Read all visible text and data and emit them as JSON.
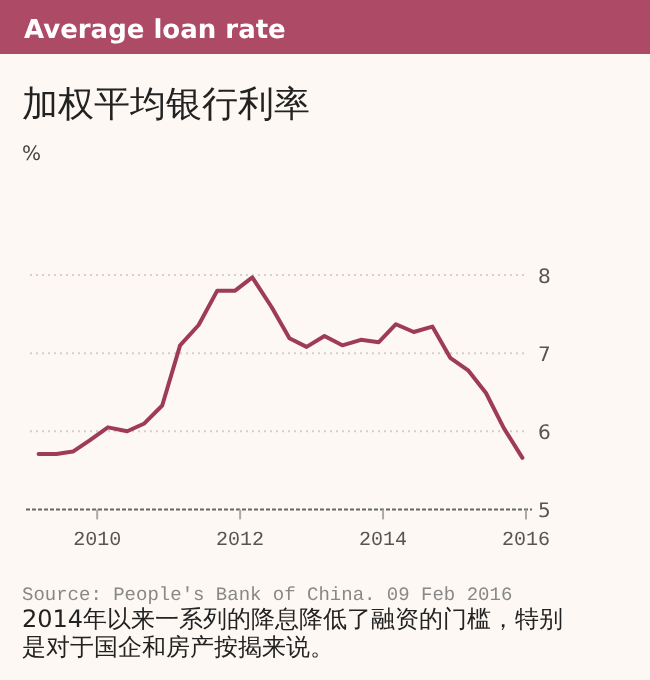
{
  "chart_data": {
    "type": "line",
    "title": "Average loan rate",
    "subtitle": "加权平均银行利率",
    "x": [
      2009.18,
      2009.43,
      2009.66,
      2009.89,
      2010.15,
      2010.42,
      2010.66,
      2010.91,
      2011.16,
      2011.42,
      2011.68,
      2011.93,
      2012.17,
      2012.44,
      2012.69,
      2012.93,
      2013.18,
      2013.43,
      2013.69,
      2013.94,
      2014.18,
      2014.43,
      2014.69,
      2014.94,
      2015.19,
      2015.44,
      2015.69,
      2015.95
    ],
    "series": [
      {
        "color": "#9e3c55",
        "values": [
          5.71,
          5.71,
          5.74,
          5.88,
          6.05,
          6.0,
          6.1,
          6.33,
          7.1,
          7.36,
          7.8,
          7.8,
          7.97,
          7.59,
          7.19,
          7.08,
          7.22,
          7.1,
          7.17,
          7.14,
          7.37,
          7.27,
          7.34,
          6.94,
          6.78,
          6.49,
          6.04,
          5.66
        ]
      }
    ],
    "xlim": [
      2009.06,
      2016
    ],
    "xticks": [
      2010,
      2012,
      2014,
      2016
    ],
    "ylim": [
      5,
      8
    ],
    "yticks": [
      5,
      6,
      7,
      8
    ],
    "grid": "y",
    "line_style": "solid",
    "marker": "none",
    "annotations": [
      "%",
      "Source: People's Bank of China. 09 Feb 2016",
      "2014年以来一系列的降息降低了融资的门槛，特别是对于国企和房产按揭来说。"
    ]
  }
}
